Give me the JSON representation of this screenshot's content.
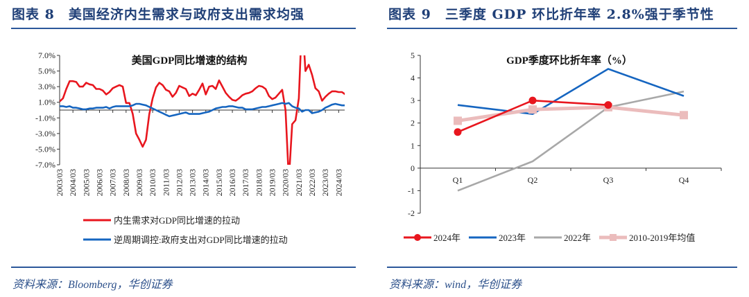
{
  "left": {
    "header": "图表 8　美国经济内生需求与政府支出需求均强",
    "source": "资料来源：Bloomberg，华创证券"
  },
  "right": {
    "header": "图表 9　三季度 GDP 环比折年率 2.8%强于季节性",
    "source": "资料来源：wind，华创证券"
  },
  "colors": {
    "header": "#1f3f77",
    "rule": "#2b579a"
  },
  "chart_data": [
    {
      "type": "line",
      "title": "美国GDP同比增速的结构",
      "ylim": [
        -7,
        7
      ],
      "yticks": [
        "7.0%",
        "5.0%",
        "3.0%",
        "1.0%",
        "-1.0%",
        "-3.0%",
        "-5.0%",
        "-7.0%"
      ],
      "xticks": [
        "2003/03",
        "2004/03",
        "2005/03",
        "2006/03",
        "2007/03",
        "2008/03",
        "2009/03",
        "2010/03",
        "2011/03",
        "2012/03",
        "2013/03",
        "2014/03",
        "2015/03",
        "2016/03",
        "2017/03",
        "2018/03",
        "2019/03",
        "2020/03",
        "2021/03",
        "2022/03",
        "2023/03",
        "2024/03"
      ],
      "x_start": "2003/03",
      "x_frequency": "quarterly",
      "legend": "bottom",
      "series": [
        {
          "name": "内生需求对GDP同比增速的拉动",
          "color": "#e8161e",
          "values": [
            1.1,
            1.5,
            2.7,
            3.7,
            3.7,
            3.6,
            3.0,
            3.0,
            3.5,
            3.3,
            3.2,
            2.7,
            2.7,
            2.5,
            2.0,
            2.3,
            2.8,
            3.0,
            3.2,
            3.0,
            0.9,
            0.9,
            -0.5,
            -3.0,
            -3.8,
            -4.7,
            -3.8,
            -0.5,
            1.5,
            2.9,
            3.5,
            3.2,
            2.6,
            2.4,
            1.7,
            2.2,
            3.1,
            2.9,
            2.7,
            1.8,
            2.1,
            1.9,
            2.6,
            3.4,
            2.0,
            3.0,
            3.1,
            2.7,
            3.8,
            3.0,
            2.2,
            1.7,
            1.3,
            1.2,
            1.5,
            1.9,
            2.1,
            2.2,
            2.4,
            2.8,
            3.1,
            3.0,
            2.7,
            1.8,
            1.4,
            1.6,
            2.1,
            2.6,
            0.0,
            -9.0,
            -1.8,
            -1.3,
            1.5,
            12.0,
            5.0,
            5.8,
            4.5,
            2.8,
            2.4,
            1.2,
            1.7,
            2.1,
            2.4,
            2.4,
            2.3,
            2.3,
            2.0
          ]
        },
        {
          "name": "逆周期调控:政府支出对GDP同比增速的拉动",
          "color": "#1565c0",
          "values": [
            0.5,
            0.5,
            0.4,
            0.5,
            0.3,
            0.3,
            0.2,
            0.1,
            0.1,
            0.2,
            0.2,
            0.3,
            0.3,
            0.3,
            0.4,
            0.2,
            0.4,
            0.5,
            0.5,
            0.5,
            0.5,
            0.5,
            0.6,
            0.8,
            0.8,
            0.7,
            0.6,
            0.4,
            0.2,
            0.0,
            -0.2,
            -0.4,
            -0.6,
            -0.8,
            -0.7,
            -0.6,
            -0.5,
            -0.4,
            -0.3,
            -0.5,
            -0.5,
            -0.5,
            -0.5,
            -0.4,
            -0.3,
            -0.2,
            0.0,
            0.2,
            0.3,
            0.4,
            0.4,
            0.5,
            0.5,
            0.4,
            0.3,
            0.3,
            0.1,
            0.1,
            0.1,
            0.2,
            0.3,
            0.4,
            0.4,
            0.5,
            0.6,
            0.7,
            0.8,
            0.9,
            0.8,
            0.9,
            0.5,
            0.3,
            0.2,
            -0.2,
            0.0,
            0.0,
            -0.4,
            -0.3,
            -0.2,
            0.0,
            0.3,
            0.5,
            0.7,
            0.8,
            0.7,
            0.6,
            0.6
          ]
        }
      ]
    },
    {
      "type": "line",
      "title": "GDP季度环比折年率（%）",
      "ylim": [
        -2,
        5
      ],
      "yticks": [
        "5",
        "4",
        "3",
        "2",
        "1",
        "0",
        "-1",
        "-2"
      ],
      "categories": [
        "Q1",
        "Q2",
        "Q3",
        "Q4"
      ],
      "legend": "bottom",
      "series": [
        {
          "name": "2024年",
          "color": "#e8161e",
          "marker": "circle",
          "values": [
            1.6,
            3.0,
            2.8,
            null
          ]
        },
        {
          "name": "2023年",
          "color": "#1565c0",
          "values": [
            2.8,
            2.4,
            4.4,
            3.2
          ]
        },
        {
          "name": "2022年",
          "color": "#a8a8a8",
          "values": [
            -1.0,
            0.3,
            2.7,
            3.4
          ]
        },
        {
          "name": "2010-2019年均值",
          "color": "#ebbcbc",
          "marker": "square",
          "values": [
            2.1,
            2.6,
            2.7,
            2.35
          ]
        }
      ]
    }
  ]
}
